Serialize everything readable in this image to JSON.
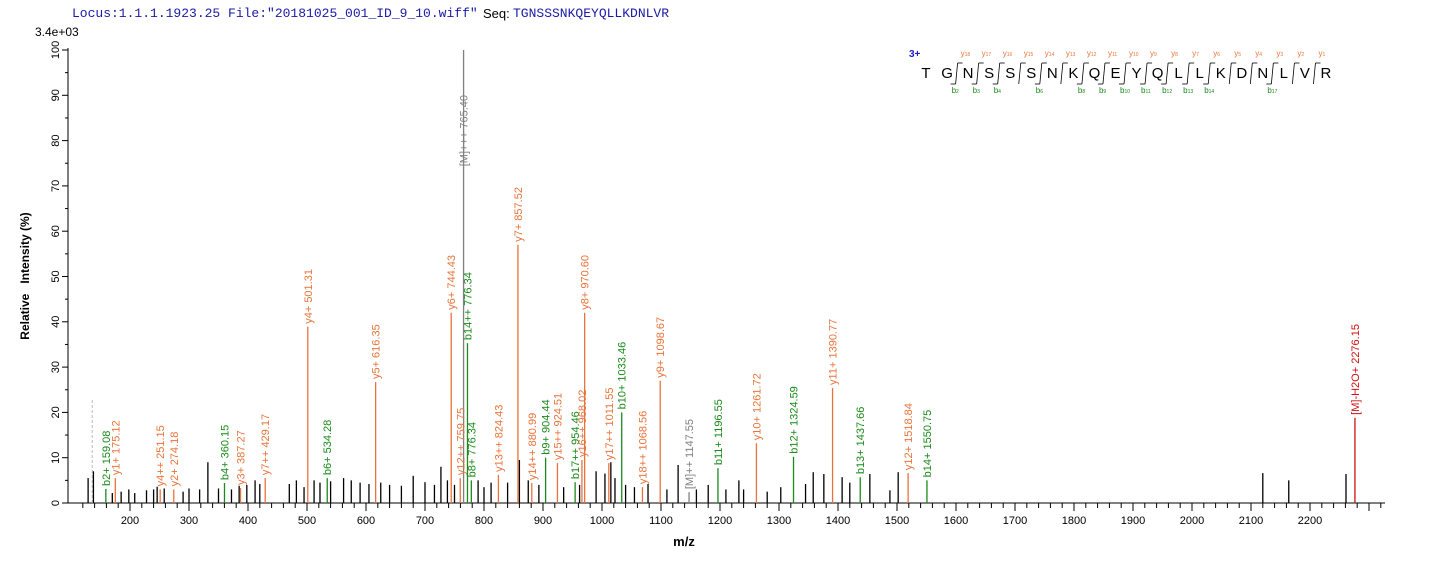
{
  "header": {
    "locus": "Locus:1.1.1.1923.25 File:\"20181025_001_ID_9_10.wiff\"",
    "seq_label": "Seq:",
    "seq_value": "TGNSSSNKQEYQLLKDNLVR"
  },
  "colors": {
    "y_ion": "#e8743b",
    "b_ion": "#1a8a1a",
    "precursor": "#808080",
    "water_loss": "#d01010",
    "unassigned": "#000000",
    "charge": "#1a1acc"
  },
  "sequence_panel": {
    "charge": "3+",
    "residues": [
      "T",
      "G",
      "N",
      "S",
      "S",
      "S",
      "N",
      "K",
      "Q",
      "E",
      "Y",
      "Q",
      "L",
      "L",
      "K",
      "D",
      "N",
      "L",
      "V",
      "R"
    ],
    "y_ions": [
      18,
      17,
      16,
      15,
      14,
      13,
      12,
      11,
      10,
      9,
      8,
      7,
      6,
      5,
      4,
      3,
      2,
      1
    ],
    "b_ions": [
      2,
      3,
      4,
      6,
      8,
      9,
      10,
      11,
      12,
      13,
      14,
      17
    ]
  },
  "chart_data": {
    "type": "bar",
    "title": "",
    "xlabel": "m/z",
    "ylabel": "Relative   Intensity (%)",
    "y_max_label": "3.4e+03",
    "xlim": [
      95,
      2330
    ],
    "ylim": [
      0,
      100
    ],
    "x_ticks": [
      200,
      300,
      400,
      500,
      600,
      700,
      800,
      900,
      1000,
      1100,
      1200,
      1300,
      1400,
      1500,
      1600,
      1700,
      1800,
      1900,
      2000,
      2100,
      2200
    ],
    "y_ticks": [
      0,
      10,
      20,
      30,
      40,
      50,
      60,
      70,
      80,
      90,
      100
    ],
    "grid": false,
    "annotated_peaks": [
      {
        "label": "b2+ 159.08",
        "mz": 159.08,
        "intensity": 3.1,
        "type": "b"
      },
      {
        "label": "y1+ 175.12",
        "mz": 175.12,
        "intensity": 5.5,
        "type": "y"
      },
      {
        "label": "y4++ 251.15",
        "mz": 251.15,
        "intensity": 3.0,
        "type": "y"
      },
      {
        "label": "y2+ 274.18",
        "mz": 274.18,
        "intensity": 3.0,
        "type": "y"
      },
      {
        "label": "b4+ 360.15",
        "mz": 360.15,
        "intensity": 4.4,
        "type": "b"
      },
      {
        "label": "y3+ 387.27",
        "mz": 387.27,
        "intensity": 3.3,
        "type": "y"
      },
      {
        "label": "y7++ 429.17",
        "mz": 429.17,
        "intensity": 5.5,
        "type": "y"
      },
      {
        "label": "y4+ 501.31",
        "mz": 501.31,
        "intensity": 38.9,
        "type": "y"
      },
      {
        "label": "b6+ 534.28",
        "mz": 534.28,
        "intensity": 5.5,
        "type": "b"
      },
      {
        "label": "y5+ 616.35",
        "mz": 616.35,
        "intensity": 26.7,
        "type": "y"
      },
      {
        "label": "y6+ 744.43",
        "mz": 744.43,
        "intensity": 42.0,
        "type": "y"
      },
      {
        "label": "y12++ 759.75",
        "mz": 759.75,
        "intensity": 5.5,
        "type": "y"
      },
      {
        "label": "[M]+++ 765.40",
        "mz": 765.4,
        "intensity": 100,
        "type": "precursor"
      },
      {
        "label": "b14++ 776.34",
        "mz": 772.0,
        "intensity": 35.3,
        "type": "b"
      },
      {
        "label": "b8+ 776.34",
        "mz": 778.5,
        "intensity": 5.0,
        "type": "b"
      },
      {
        "label": "y13++ 824.43",
        "mz": 824.43,
        "intensity": 6.2,
        "type": "y"
      },
      {
        "label": "y7+ 857.52",
        "mz": 857.52,
        "intensity": 57.0,
        "type": "y"
      },
      {
        "label": "y14++ 880.99",
        "mz": 880.99,
        "intensity": 4.4,
        "type": "y"
      },
      {
        "label": "b9+ 904.44",
        "mz": 904.44,
        "intensity": 10.0,
        "type": "b"
      },
      {
        "label": "y15++ 924.51",
        "mz": 924.51,
        "intensity": 8.8,
        "type": "y"
      },
      {
        "label": "b17++ 954.46",
        "mz": 954.46,
        "intensity": 4.6,
        "type": "b"
      },
      {
        "label": "y16++ 968.02",
        "mz": 966.0,
        "intensity": 9.5,
        "type": "y"
      },
      {
        "label": "y8+ 970.60",
        "mz": 970.6,
        "intensity": 42.0,
        "type": "y"
      },
      {
        "label": "y17++ 1011.55",
        "mz": 1011.55,
        "intensity": 8.8,
        "type": "y"
      },
      {
        "label": "b10+ 1033.46",
        "mz": 1033.46,
        "intensity": 20.0,
        "type": "b"
      },
      {
        "label": "y18++ 1068.56",
        "mz": 1068.56,
        "intensity": 3.5,
        "type": "y"
      },
      {
        "label": "y9+ 1098.67",
        "mz": 1098.67,
        "intensity": 27.0,
        "type": "y"
      },
      {
        "label": "[M]++ 1147.55",
        "mz": 1147.55,
        "intensity": 2.4,
        "type": "precursor"
      },
      {
        "label": "b11+ 1196.55",
        "mz": 1196.55,
        "intensity": 7.7,
        "type": "b"
      },
      {
        "label": "y10+ 1261.72",
        "mz": 1261.72,
        "intensity": 13.2,
        "type": "y"
      },
      {
        "label": "b12+ 1324.59",
        "mz": 1324.59,
        "intensity": 10.2,
        "type": "b"
      },
      {
        "label": "y11+ 1390.77",
        "mz": 1390.77,
        "intensity": 25.4,
        "type": "y"
      },
      {
        "label": "b13+ 1437.66",
        "mz": 1437.66,
        "intensity": 5.7,
        "type": "b"
      },
      {
        "label": "y12+ 1518.84",
        "mz": 1518.84,
        "intensity": 6.6,
        "type": "y"
      },
      {
        "label": "b14+ 1550.75",
        "mz": 1550.75,
        "intensity": 5.0,
        "type": "b"
      },
      {
        "label": "[M]-H2O+ 2276.15",
        "mz": 2276.15,
        "intensity": 18.8,
        "type": "water"
      }
    ],
    "unassigned_peaks": [
      {
        "mz": 129,
        "intensity": 5.5
      },
      {
        "mz": 136,
        "intensity": 22.7,
        "dashed": true
      },
      {
        "mz": 138,
        "intensity": 7.0
      },
      {
        "mz": 170,
        "intensity": 2.2
      },
      {
        "mz": 185,
        "intensity": 2.5
      },
      {
        "mz": 198,
        "intensity": 3.0
      },
      {
        "mz": 208,
        "intensity": 2.2
      },
      {
        "mz": 228,
        "intensity": 2.8
      },
      {
        "mz": 240,
        "intensity": 3.0
      },
      {
        "mz": 246,
        "intensity": 3.6
      },
      {
        "mz": 258,
        "intensity": 3.2
      },
      {
        "mz": 290,
        "intensity": 2.5
      },
      {
        "mz": 300,
        "intensity": 3.2
      },
      {
        "mz": 318,
        "intensity": 3.0
      },
      {
        "mz": 332,
        "intensity": 9.0
      },
      {
        "mz": 350,
        "intensity": 3.2
      },
      {
        "mz": 372,
        "intensity": 3.0
      },
      {
        "mz": 385,
        "intensity": 3.8
      },
      {
        "mz": 398,
        "intensity": 4.0
      },
      {
        "mz": 412,
        "intensity": 5.0
      },
      {
        "mz": 420,
        "intensity": 4.2
      },
      {
        "mz": 470,
        "intensity": 4.2
      },
      {
        "mz": 482,
        "intensity": 5.0
      },
      {
        "mz": 495,
        "intensity": 3.5
      },
      {
        "mz": 512,
        "intensity": 5.0
      },
      {
        "mz": 522,
        "intensity": 4.5
      },
      {
        "mz": 540,
        "intensity": 4.8
      },
      {
        "mz": 562,
        "intensity": 5.5
      },
      {
        "mz": 575,
        "intensity": 5.0
      },
      {
        "mz": 590,
        "intensity": 4.5
      },
      {
        "mz": 605,
        "intensity": 4.2
      },
      {
        "mz": 625,
        "intensity": 4.5
      },
      {
        "mz": 640,
        "intensity": 4.0
      },
      {
        "mz": 660,
        "intensity": 3.8
      },
      {
        "mz": 680,
        "intensity": 6.0
      },
      {
        "mz": 700,
        "intensity": 4.6
      },
      {
        "mz": 716,
        "intensity": 4.0
      },
      {
        "mz": 727,
        "intensity": 8.0
      },
      {
        "mz": 738,
        "intensity": 5.0
      },
      {
        "mz": 750,
        "intensity": 4.0
      },
      {
        "mz": 790,
        "intensity": 5.0
      },
      {
        "mz": 800,
        "intensity": 3.5
      },
      {
        "mz": 812,
        "intensity": 4.5
      },
      {
        "mz": 840,
        "intensity": 4.5
      },
      {
        "mz": 860,
        "intensity": 9.5
      },
      {
        "mz": 875,
        "intensity": 5.0
      },
      {
        "mz": 893,
        "intensity": 4.0
      },
      {
        "mz": 935,
        "intensity": 3.5
      },
      {
        "mz": 962,
        "intensity": 4.0
      },
      {
        "mz": 990,
        "intensity": 7.0
      },
      {
        "mz": 1005,
        "intensity": 6.5
      },
      {
        "mz": 1015,
        "intensity": 9.0
      },
      {
        "mz": 1022,
        "intensity": 5.5
      },
      {
        "mz": 1040,
        "intensity": 4.0
      },
      {
        "mz": 1055,
        "intensity": 3.5
      },
      {
        "mz": 1078,
        "intensity": 4.2
      },
      {
        "mz": 1110,
        "intensity": 3.0
      },
      {
        "mz": 1129,
        "intensity": 8.4
      },
      {
        "mz": 1160,
        "intensity": 3.0
      },
      {
        "mz": 1180,
        "intensity": 4.0
      },
      {
        "mz": 1210,
        "intensity": 3.0
      },
      {
        "mz": 1232,
        "intensity": 5.0
      },
      {
        "mz": 1240,
        "intensity": 3.0
      },
      {
        "mz": 1280,
        "intensity": 2.5
      },
      {
        "mz": 1303,
        "intensity": 3.5
      },
      {
        "mz": 1345,
        "intensity": 4.2
      },
      {
        "mz": 1358,
        "intensity": 6.8
      },
      {
        "mz": 1376,
        "intensity": 6.4
      },
      {
        "mz": 1407,
        "intensity": 5.7
      },
      {
        "mz": 1420,
        "intensity": 4.5
      },
      {
        "mz": 1454,
        "intensity": 6.4
      },
      {
        "mz": 1488,
        "intensity": 2.8
      },
      {
        "mz": 1502,
        "intensity": 6.8
      },
      {
        "mz": 2120,
        "intensity": 6.6
      },
      {
        "mz": 2164,
        "intensity": 5.0
      },
      {
        "mz": 2261,
        "intensity": 6.4
      }
    ]
  }
}
